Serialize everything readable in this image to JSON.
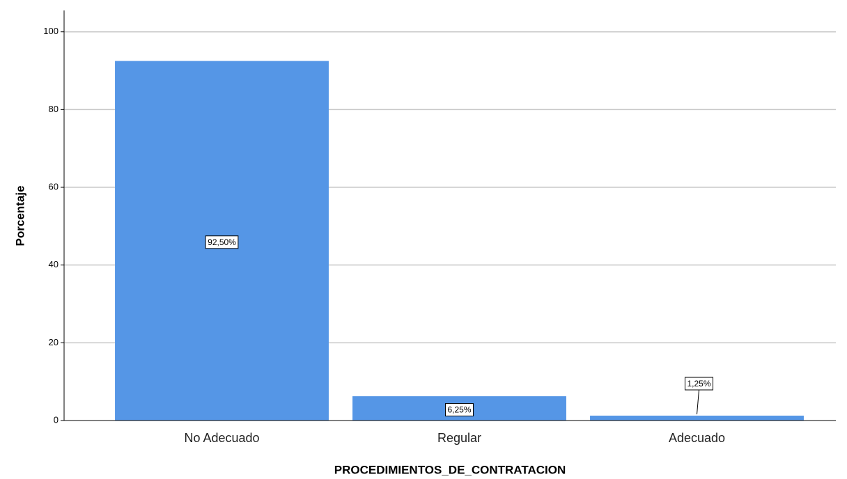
{
  "chart_data": {
    "type": "bar",
    "x_label": "PROCEDIMIENTOS_DE_CONTRATACION",
    "y_label": "Porcentaje",
    "categories": [
      "No Adecuado",
      "Regular",
      "Adecuado"
    ],
    "values": [
      92.5,
      6.25,
      1.25
    ],
    "value_labels": [
      "92,50%",
      "6,25%",
      "1,25%"
    ],
    "color": "#5596e6",
    "ylim": [
      0,
      105.5
    ],
    "yticks": [
      0,
      20,
      40,
      60,
      80,
      100
    ],
    "grid": true
  }
}
